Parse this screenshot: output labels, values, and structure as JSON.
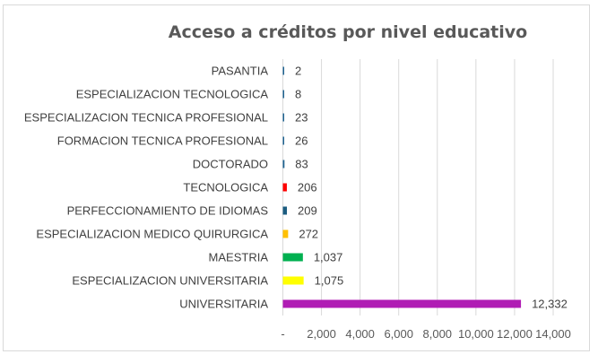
{
  "chart_data": {
    "type": "bar",
    "orientation": "horizontal",
    "title": "Acceso a créditos por nivel educativo",
    "categories": [
      "PASANTIA",
      "ESPECIALIZACION TECNOLOGICA",
      "ESPECIALIZACION TECNICA PROFESIONAL",
      "FORMACION TECNICA PROFESIONAL",
      "DOCTORADO",
      "TECNOLOGICA",
      "PERFECCIONAMIENTO DE IDIOMAS",
      "ESPECIALIZACION MEDICO QUIRURGICA",
      "MAESTRIA",
      "ESPECIALIZACION UNIVERSITARIA",
      "UNIVERSITARIA"
    ],
    "values": [
      2,
      8,
      23,
      26,
      83,
      206,
      209,
      272,
      1037,
      1075,
      12332
    ],
    "data_labels": [
      "2",
      "8",
      "23",
      "26",
      "83",
      "206",
      "209",
      "272",
      "1,037",
      "1,075",
      "12,332"
    ],
    "colors": [
      "#1f6391",
      "#1f6391",
      "#1f6391",
      "#1f6391",
      "#1f6391",
      "#ff0000",
      "#1b5c80",
      "#ffc000",
      "#00b050",
      "#ffff00",
      "#b01cb4"
    ],
    "xlim": [
      0,
      14000
    ],
    "x_ticks": [
      0,
      2000,
      4000,
      6000,
      8000,
      10000,
      12000,
      14000
    ],
    "x_tick_labels": [
      "-",
      "2,000",
      "4,000",
      "6,000",
      "8,000",
      "10,000",
      "12,000",
      "14,000"
    ],
    "xlabel": "",
    "ylabel": "",
    "grid": "vertical",
    "legend": "none"
  }
}
